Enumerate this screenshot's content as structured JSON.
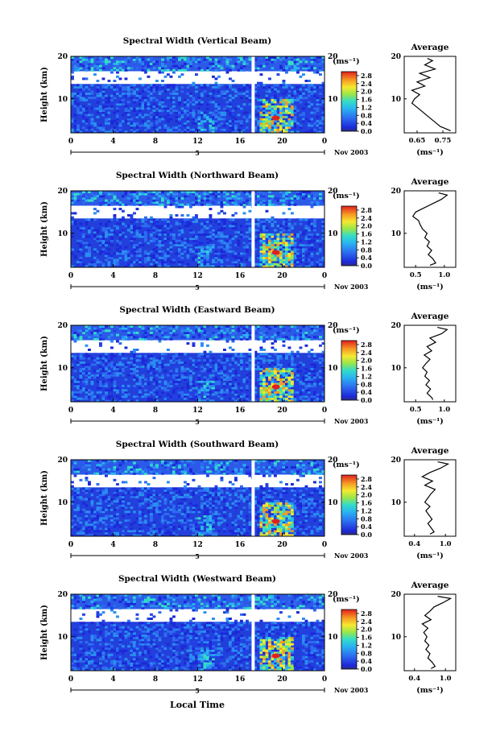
{
  "figure": {
    "month_label": "Nov 2003",
    "day_label": "5",
    "xlabel": "Local Time",
    "ylabel": "Height (km)",
    "colorbar_unit": "(ms⁻¹)",
    "avg_title": "Average",
    "avg_xlabel": "(ms⁻¹)"
  },
  "chart_data": [
    {
      "type": "heatmap",
      "title": "Spectral Width (Vertical Beam)",
      "x_ticks": [
        "0",
        "4",
        "8",
        "12",
        "16",
        "20",
        "0"
      ],
      "y_ticks": [
        "10",
        "20"
      ],
      "xlim": [
        0,
        24
      ],
      "ylim": [
        2,
        20
      ],
      "gap_hours": [
        17.1,
        17.4
      ],
      "colorbar": {
        "ticks": [
          "0.0",
          "0.4",
          "0.8",
          "1.2",
          "1.6",
          "2.0",
          "2.4",
          "2.8"
        ],
        "range": [
          0,
          3.0
        ]
      },
      "average_profile": {
        "x_ticks": [
          "0.65",
          "0.75"
        ],
        "x_tick_values": [
          0.65,
          0.75
        ],
        "xlim": [
          0.6,
          0.8
        ],
        "y_ticks": [
          "10",
          "20"
        ],
        "ylim": [
          2,
          20
        ],
        "height_km": [
          2.5,
          3,
          3.5,
          4,
          5,
          6,
          7,
          8,
          9,
          10,
          11,
          12,
          13,
          14,
          15,
          16,
          17,
          18,
          19,
          19.5
        ],
        "width_ms": [
          0.78,
          0.76,
          0.74,
          0.73,
          0.71,
          0.69,
          0.67,
          0.65,
          0.63,
          0.64,
          0.66,
          0.63,
          0.68,
          0.65,
          0.7,
          0.66,
          0.72,
          0.68,
          0.71,
          0.69
        ]
      }
    },
    {
      "type": "heatmap",
      "title": "Spectral Width (Northward Beam)",
      "x_ticks": [
        "0",
        "4",
        "8",
        "12",
        "16",
        "20",
        "0"
      ],
      "y_ticks": [
        "10",
        "20"
      ],
      "xlim": [
        0,
        24
      ],
      "ylim": [
        2,
        20
      ],
      "gap_hours": [
        17.1,
        17.4
      ],
      "colorbar": {
        "ticks": [
          "0.0",
          "0.4",
          "0.8",
          "1.2",
          "1.6",
          "2.0",
          "2.4",
          "2.8"
        ],
        "range": [
          0,
          3.0
        ]
      },
      "average_profile": {
        "x_ticks": [
          "0.5",
          "1.0"
        ],
        "x_tick_values": [
          0.5,
          1.0
        ],
        "xlim": [
          0.3,
          1.2
        ],
        "y_ticks": [
          "10",
          "20"
        ],
        "ylim": [
          2,
          20
        ],
        "height_km": [
          2.5,
          3,
          4,
          5,
          6,
          7,
          8,
          9,
          10,
          11,
          12,
          13,
          14,
          15,
          16,
          17,
          18,
          19,
          19.5
        ],
        "width_ms": [
          0.75,
          0.85,
          0.8,
          0.72,
          0.78,
          0.7,
          0.74,
          0.66,
          0.7,
          0.62,
          0.58,
          0.55,
          0.45,
          0.5,
          0.65,
          0.8,
          0.95,
          1.05,
          0.9
        ]
      }
    },
    {
      "type": "heatmap",
      "title": "Spectral Width (Eastward Beam)",
      "x_ticks": [
        "0",
        "4",
        "8",
        "12",
        "16",
        "20",
        "0"
      ],
      "y_ticks": [
        "10",
        "20"
      ],
      "xlim": [
        0,
        24
      ],
      "ylim": [
        2,
        20
      ],
      "gap_hours": [
        17.1,
        17.4
      ],
      "colorbar": {
        "ticks": [
          "0.0",
          "0.4",
          "0.8",
          "1.2",
          "1.6",
          "2.0",
          "2.4",
          "2.8"
        ],
        "range": [
          0,
          3.0
        ]
      },
      "average_profile": {
        "x_ticks": [
          "0.5",
          "1.0"
        ],
        "x_tick_values": [
          0.5,
          1.0
        ],
        "xlim": [
          0.3,
          1.2
        ],
        "y_ticks": [
          "10",
          "20"
        ],
        "ylim": [
          2,
          20
        ],
        "height_km": [
          2.5,
          3,
          4,
          5,
          6,
          7,
          8,
          9,
          10,
          11,
          12,
          13,
          14,
          15,
          16,
          17,
          18,
          19,
          19.5
        ],
        "width_ms": [
          0.8,
          0.78,
          0.7,
          0.76,
          0.68,
          0.74,
          0.66,
          0.7,
          0.62,
          0.68,
          0.75,
          0.65,
          0.78,
          0.7,
          0.85,
          0.75,
          0.95,
          1.05,
          0.88
        ]
      }
    },
    {
      "type": "heatmap",
      "title": "Spectral Width (Southward Beam)",
      "x_ticks": [
        "0",
        "4",
        "8",
        "12",
        "16",
        "20",
        "0"
      ],
      "y_ticks": [
        "10",
        "20"
      ],
      "xlim": [
        0,
        24
      ],
      "ylim": [
        2,
        20
      ],
      "gap_hours": [
        17.1,
        17.4
      ],
      "colorbar": {
        "ticks": [
          "0.0",
          "0.4",
          "0.8",
          "1.2",
          "1.6",
          "2.0",
          "2.4",
          "2.8"
        ],
        "range": [
          0,
          3.0
        ]
      },
      "average_profile": {
        "x_ticks": [
          "0.4",
          "1.0"
        ],
        "x_tick_values": [
          0.4,
          1.0
        ],
        "xlim": [
          0.2,
          1.2
        ],
        "y_ticks": [
          "10",
          "20"
        ],
        "ylim": [
          2,
          20
        ],
        "height_km": [
          2.5,
          3,
          4,
          5,
          6,
          7,
          8,
          9,
          10,
          11,
          12,
          13,
          14,
          15,
          16,
          17,
          18,
          19,
          19.5
        ],
        "width_ms": [
          0.7,
          0.78,
          0.72,
          0.66,
          0.74,
          0.68,
          0.62,
          0.7,
          0.6,
          0.66,
          0.72,
          0.8,
          0.6,
          0.75,
          0.55,
          0.7,
          0.9,
          1.05,
          0.85
        ]
      }
    },
    {
      "type": "heatmap",
      "title": "Spectral Width (Westward Beam)",
      "x_ticks": [
        "0",
        "4",
        "8",
        "12",
        "16",
        "20",
        "0"
      ],
      "y_ticks": [
        "10",
        "20"
      ],
      "xlim": [
        0,
        24
      ],
      "ylim": [
        2,
        20
      ],
      "gap_hours": [
        17.1,
        17.4
      ],
      "colorbar": {
        "ticks": [
          "0.0",
          "0.4",
          "0.8",
          "1.2",
          "1.6",
          "2.0",
          "2.4",
          "2.8"
        ],
        "range": [
          0,
          3.0
        ]
      },
      "average_profile": {
        "x_ticks": [
          "0.4",
          "1.0"
        ],
        "x_tick_values": [
          0.4,
          1.0
        ],
        "xlim": [
          0.2,
          1.2
        ],
        "y_ticks": [
          "10",
          "20"
        ],
        "ylim": [
          2,
          20
        ],
        "height_km": [
          2.5,
          3,
          4,
          5,
          6,
          7,
          8,
          9,
          10,
          11,
          12,
          13,
          14,
          15,
          16,
          17,
          18,
          19,
          19.5
        ],
        "width_ms": [
          0.72,
          0.8,
          0.74,
          0.66,
          0.7,
          0.62,
          0.68,
          0.6,
          0.64,
          0.58,
          0.66,
          0.55,
          0.72,
          0.6,
          0.7,
          0.78,
          0.95,
          1.1,
          0.85
        ]
      }
    }
  ]
}
